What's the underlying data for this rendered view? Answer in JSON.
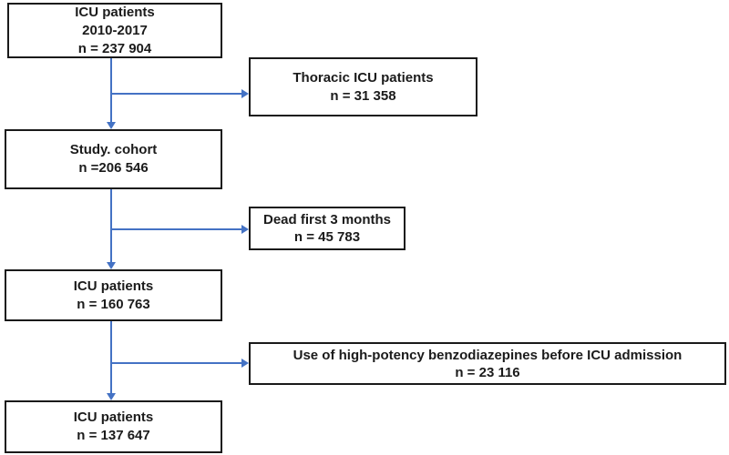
{
  "diagram": {
    "type": "flowchart",
    "colors": {
      "arrow": "#4472C4",
      "box_border": "#1a1a1a",
      "text": "#1b1b1b",
      "background": "#ffffff"
    },
    "nodes": [
      {
        "lines": [
          "ICU patients",
          "2010-2017",
          "n = 237 904"
        ]
      },
      {
        "lines": [
          "Thoracic ICU patients",
          "n = 31 358"
        ]
      },
      {
        "lines": [
          "Study. cohort",
          "n =206 546"
        ]
      },
      {
        "lines": [
          "Dead first 3 months",
          "n = 45 783"
        ]
      },
      {
        "lines": [
          "ICU patients",
          "n = 160 763"
        ]
      },
      {
        "lines": [
          "Use of high-potency benzodiazepines before ICU admission",
          "n = 23 116"
        ]
      },
      {
        "lines": [
          "ICU patients",
          "n = 137 647"
        ]
      }
    ]
  }
}
